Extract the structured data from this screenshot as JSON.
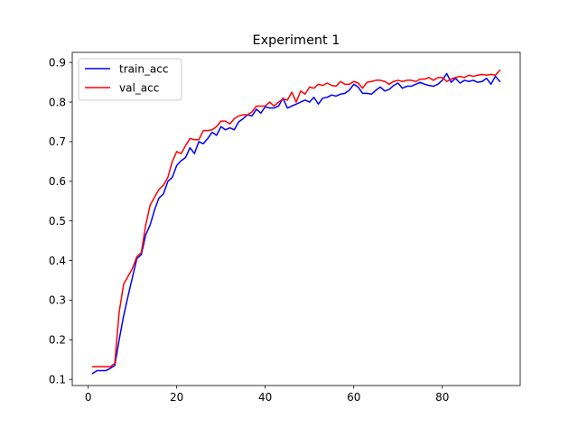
{
  "chart_data": {
    "type": "line",
    "title": "Experiment 1",
    "xlabel": "",
    "ylabel": "",
    "xlim": [
      -3.6,
      97.6
    ],
    "ylim": [
      0.0845,
      0.9255
    ],
    "xticks": [
      0,
      20,
      40,
      60,
      80
    ],
    "yticks": [
      0.1,
      0.2,
      0.3,
      0.4,
      0.5,
      0.6,
      0.7,
      0.8,
      0.9
    ],
    "grid": false,
    "legend": {
      "position": "upper-left"
    },
    "series": [
      {
        "name": "train_acc",
        "color": "#0000ff",
        "x": [
          1,
          2,
          3,
          4,
          5,
          6,
          7,
          8,
          9,
          10,
          11,
          12,
          13,
          14,
          15,
          16,
          17,
          18,
          19,
          20,
          21,
          22,
          23,
          24,
          25,
          26,
          27,
          28,
          29,
          30,
          31,
          32,
          33,
          34,
          35,
          36,
          37,
          38,
          39,
          40,
          41,
          42,
          43,
          44,
          45,
          46,
          47,
          48,
          49,
          50,
          51,
          52,
          53,
          54,
          55,
          56,
          57,
          58,
          59,
          60,
          61,
          62,
          63,
          64,
          65,
          66,
          67,
          68,
          69,
          70,
          71,
          72,
          73,
          74,
          75,
          76,
          77,
          78,
          79,
          80,
          81,
          82,
          83,
          84,
          85,
          86,
          87,
          88,
          89,
          90,
          91,
          92,
          93
        ],
        "y": [
          0.115,
          0.122,
          0.122,
          0.122,
          0.128,
          0.135,
          0.2,
          0.26,
          0.31,
          0.358,
          0.405,
          0.415,
          0.465,
          0.49,
          0.528,
          0.558,
          0.568,
          0.6,
          0.61,
          0.64,
          0.652,
          0.66,
          0.685,
          0.67,
          0.7,
          0.695,
          0.708,
          0.724,
          0.716,
          0.738,
          0.73,
          0.735,
          0.73,
          0.75,
          0.758,
          0.768,
          0.765,
          0.782,
          0.772,
          0.788,
          0.785,
          0.785,
          0.79,
          0.81,
          0.785,
          0.79,
          0.795,
          0.8,
          0.805,
          0.8,
          0.812,
          0.795,
          0.81,
          0.812,
          0.818,
          0.815,
          0.82,
          0.822,
          0.83,
          0.845,
          0.838,
          0.822,
          0.822,
          0.82,
          0.83,
          0.838,
          0.828,
          0.832,
          0.842,
          0.848,
          0.835,
          0.84,
          0.84,
          0.845,
          0.85,
          0.845,
          0.842,
          0.84,
          0.845,
          0.855,
          0.872,
          0.85,
          0.86,
          0.848,
          0.855,
          0.852,
          0.855,
          0.85,
          0.852,
          0.86,
          0.845,
          0.865,
          0.852
        ]
      },
      {
        "name": "val_acc",
        "color": "#ff0000",
        "x": [
          1,
          2,
          3,
          4,
          5,
          6,
          7,
          8,
          9,
          10,
          11,
          12,
          13,
          14,
          15,
          16,
          17,
          18,
          19,
          20,
          21,
          22,
          23,
          24,
          25,
          26,
          27,
          28,
          29,
          30,
          31,
          32,
          33,
          34,
          35,
          36,
          37,
          38,
          39,
          40,
          41,
          42,
          43,
          44,
          45,
          46,
          47,
          48,
          49,
          50,
          51,
          52,
          53,
          54,
          55,
          56,
          57,
          58,
          59,
          60,
          61,
          62,
          63,
          64,
          65,
          66,
          67,
          68,
          69,
          70,
          71,
          72,
          73,
          74,
          75,
          76,
          77,
          78,
          79,
          80,
          81,
          82,
          83,
          84,
          85,
          86,
          87,
          88,
          89,
          90,
          91,
          92,
          93
        ],
        "y": [
          0.132,
          0.132,
          0.132,
          0.132,
          0.132,
          0.14,
          0.27,
          0.34,
          0.36,
          0.38,
          0.41,
          0.42,
          0.49,
          0.54,
          0.56,
          0.58,
          0.59,
          0.61,
          0.65,
          0.675,
          0.67,
          0.69,
          0.708,
          0.705,
          0.705,
          0.728,
          0.728,
          0.73,
          0.738,
          0.752,
          0.752,
          0.745,
          0.758,
          0.765,
          0.768,
          0.768,
          0.775,
          0.79,
          0.79,
          0.79,
          0.8,
          0.79,
          0.8,
          0.808,
          0.805,
          0.825,
          0.8,
          0.828,
          0.82,
          0.838,
          0.835,
          0.845,
          0.842,
          0.848,
          0.842,
          0.84,
          0.852,
          0.845,
          0.845,
          0.852,
          0.848,
          0.835,
          0.85,
          0.852,
          0.855,
          0.855,
          0.852,
          0.845,
          0.852,
          0.855,
          0.852,
          0.855,
          0.855,
          0.852,
          0.858,
          0.858,
          0.862,
          0.855,
          0.862,
          0.862,
          0.852,
          0.858,
          0.862,
          0.865,
          0.862,
          0.868,
          0.865,
          0.868,
          0.87,
          0.868,
          0.87,
          0.868,
          0.88
        ]
      }
    ]
  }
}
